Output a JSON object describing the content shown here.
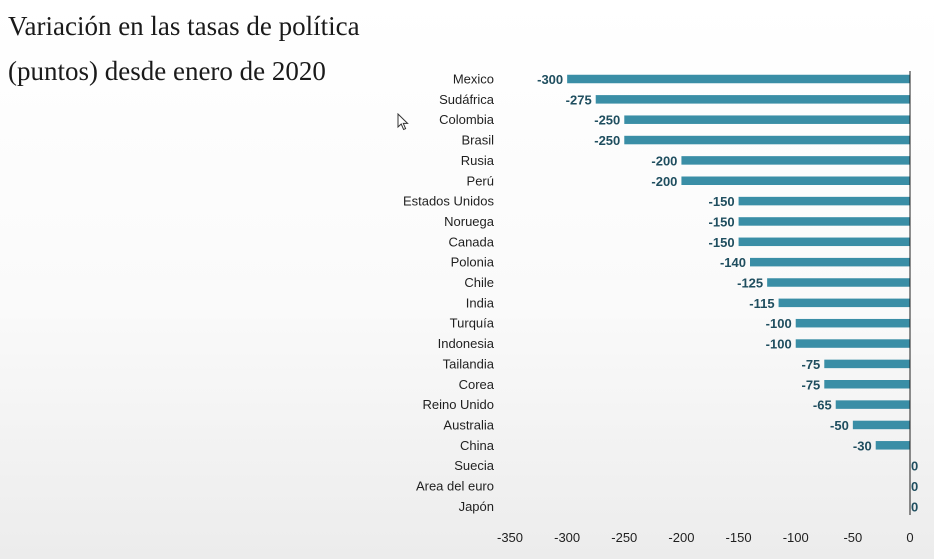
{
  "title": "Variación en las tasas de política (puntos) desde enero de 2020",
  "colors": {
    "bar": "#3a8ea6",
    "axis": "#1f1f1f",
    "value_label": "#1f4e5f"
  },
  "chart_data": {
    "type": "bar",
    "orientation": "horizontal",
    "categories": [
      "Mexico",
      "Sudáfrica",
      "Colombia",
      "Brasil",
      "Rusia",
      "Perú",
      "Estados Unidos",
      "Noruega",
      "Canada",
      "Polonia",
      "Chile",
      "India",
      "Turquía",
      "Indonesia",
      "Tailandia",
      "Corea",
      "Reino Unido",
      "Australia",
      "China",
      "Suecia",
      "Area del euro",
      "Japón"
    ],
    "values": [
      -300,
      -275,
      -250,
      -250,
      -200,
      -200,
      -150,
      -150,
      -150,
      -140,
      -125,
      -115,
      -100,
      -100,
      -75,
      -75,
      -65,
      -50,
      -30,
      0,
      0,
      0
    ],
    "value_labels": [
      "-300",
      "-275",
      "-250",
      "-250",
      "-200",
      "-200",
      "-150",
      "-150",
      "-150",
      "-140",
      "-125",
      "-115",
      "-100",
      "-100",
      "-75",
      "-75",
      "-65",
      "-50",
      "-30",
      "0",
      "0",
      "0"
    ],
    "xlim": [
      -350,
      0
    ],
    "xticks": [
      -350,
      -300,
      -250,
      -200,
      -150,
      -100,
      -50,
      0
    ],
    "xtick_labels": [
      "-350",
      "-300",
      "-250",
      "-200",
      "-150",
      "-100",
      "-50",
      "0"
    ],
    "grid": false,
    "legend": "none"
  }
}
